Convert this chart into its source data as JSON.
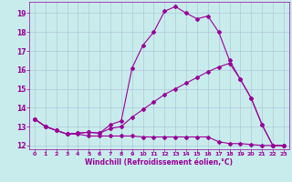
{
  "xlabel": "Windchill (Refroidissement éolien,°C)",
  "bg_color": "#c8ecec",
  "grid_color": "#b0c8d8",
  "line_color": "#990099",
  "xlim": [
    -0.5,
    23.5
  ],
  "ylim": [
    11.8,
    19.6
  ],
  "yticks": [
    12,
    13,
    14,
    15,
    16,
    17,
    18,
    19
  ],
  "xticks": [
    0,
    1,
    2,
    3,
    4,
    5,
    6,
    7,
    8,
    9,
    10,
    11,
    12,
    13,
    14,
    15,
    16,
    17,
    18,
    19,
    20,
    21,
    22,
    23
  ],
  "line1_x": [
    0,
    1,
    2,
    3,
    4,
    5,
    6,
    7,
    8,
    9,
    10,
    11,
    12,
    13,
    14,
    15,
    16,
    17,
    18,
    19,
    20,
    21,
    22,
    23
  ],
  "line1_y": [
    13.4,
    13.0,
    12.8,
    12.6,
    12.65,
    12.7,
    12.65,
    13.1,
    13.3,
    16.1,
    17.3,
    18.0,
    19.1,
    19.35,
    19.0,
    18.7,
    18.85,
    18.0,
    16.5,
    15.5,
    14.5,
    13.1,
    12.0,
    12.0
  ],
  "line2_x": [
    0,
    1,
    2,
    3,
    4,
    5,
    6,
    7,
    8,
    9,
    10,
    11,
    12,
    13,
    14,
    15,
    16,
    17,
    18,
    19,
    20,
    21,
    22,
    23
  ],
  "line2_y": [
    13.4,
    13.0,
    12.8,
    12.6,
    12.65,
    12.7,
    12.65,
    12.9,
    13.0,
    13.5,
    13.9,
    14.3,
    14.7,
    15.0,
    15.3,
    15.6,
    15.9,
    16.15,
    16.35,
    15.5,
    14.5,
    13.1,
    12.0,
    12.0
  ],
  "line3_x": [
    0,
    1,
    2,
    3,
    4,
    5,
    6,
    7,
    8,
    9,
    10,
    11,
    12,
    13,
    14,
    15,
    16,
    17,
    18,
    19,
    20,
    21,
    22,
    23
  ],
  "line3_y": [
    13.4,
    13.0,
    12.8,
    12.6,
    12.6,
    12.5,
    12.5,
    12.5,
    12.5,
    12.5,
    12.45,
    12.45,
    12.45,
    12.45,
    12.45,
    12.45,
    12.45,
    12.2,
    12.1,
    12.1,
    12.05,
    12.0,
    12.0,
    12.0
  ]
}
